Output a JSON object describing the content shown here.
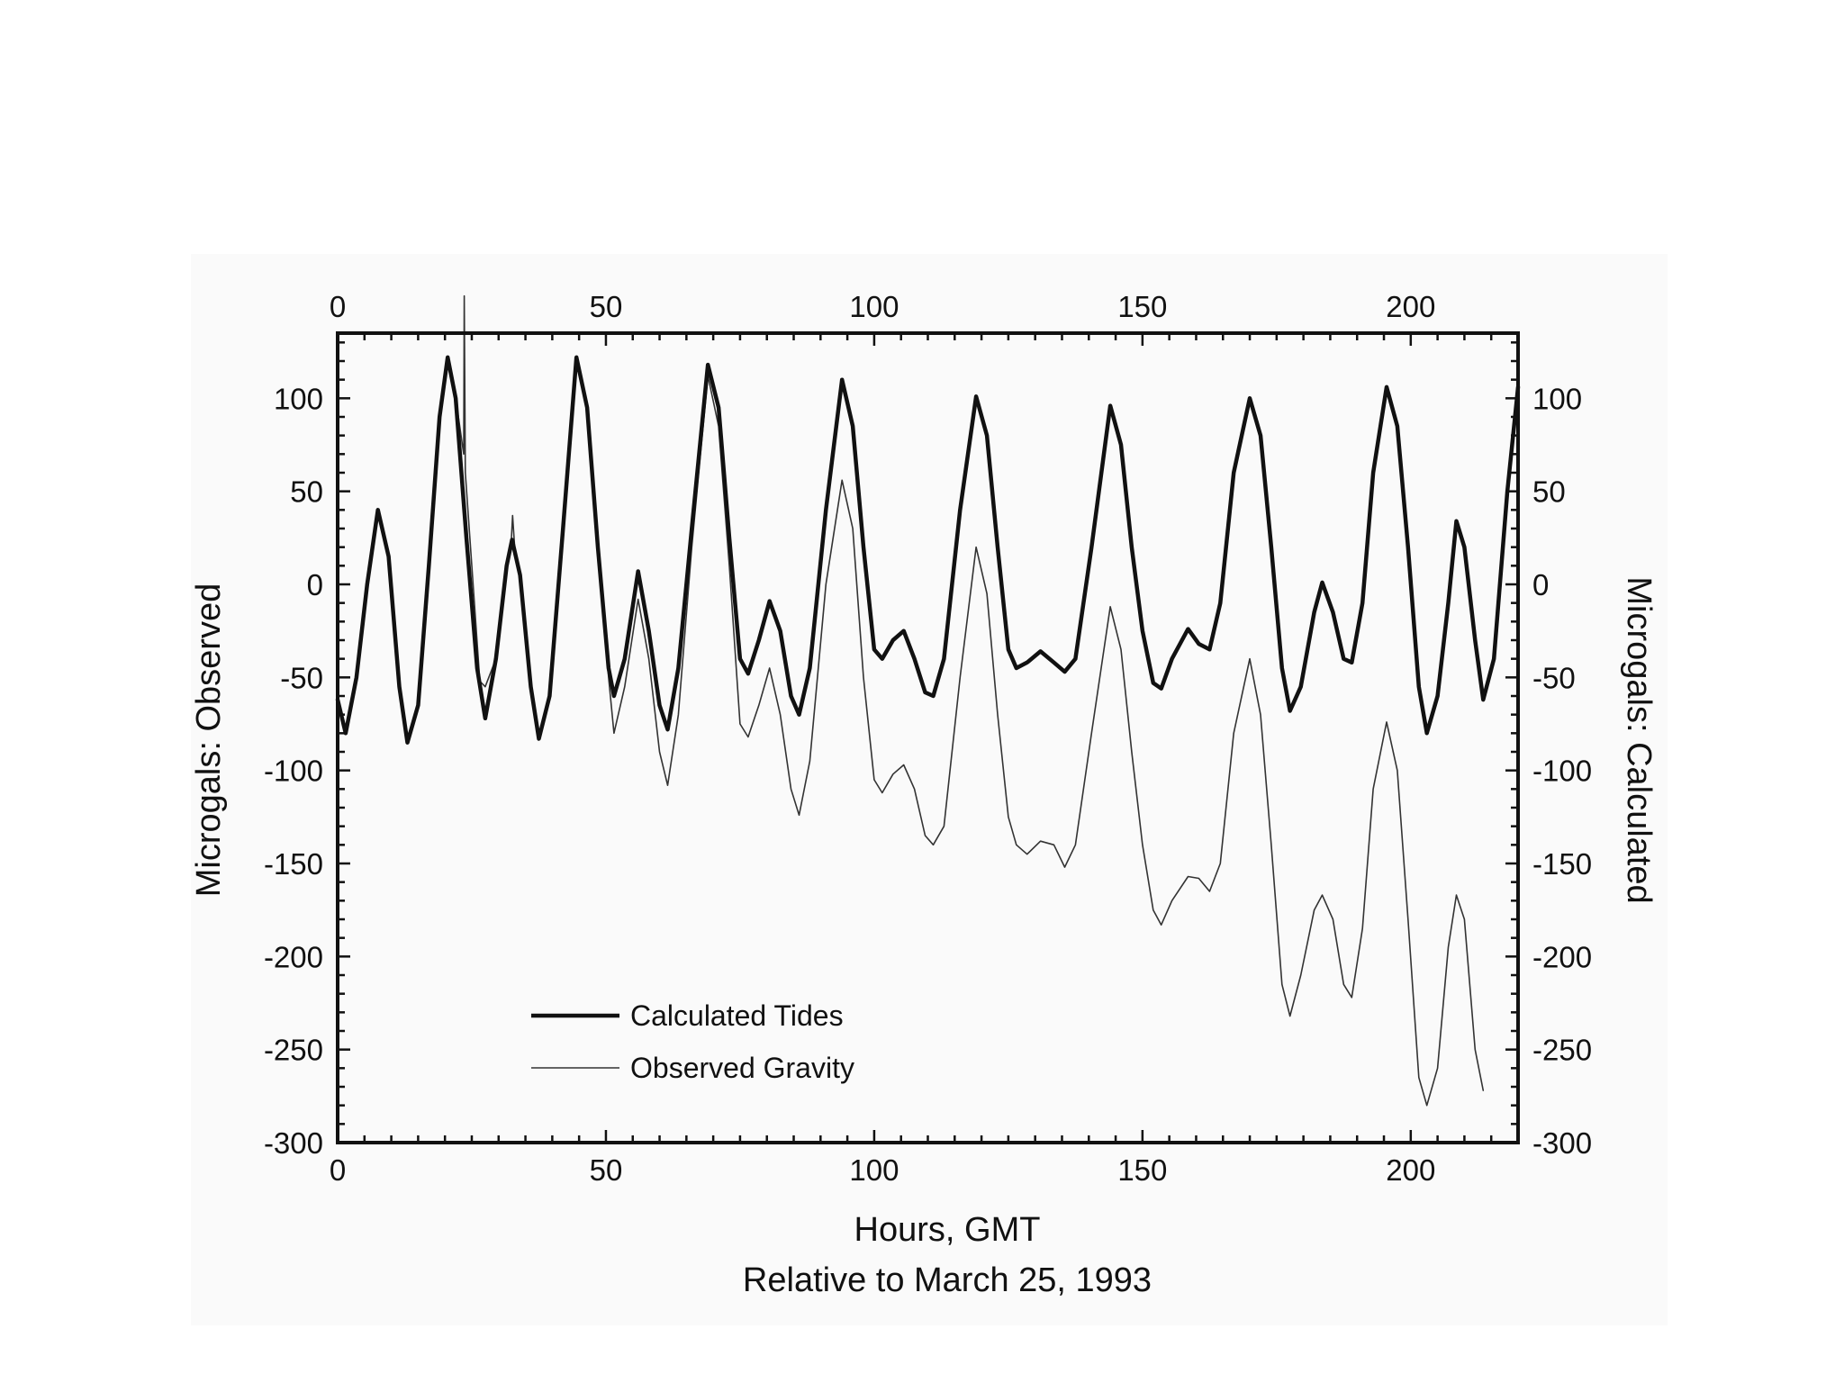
{
  "chart_data": {
    "type": "line",
    "xlabel": "Hours, GMT",
    "xlabel_sub": "Relative to March 25, 1993",
    "ylabel_left": "Microgals: Observed",
    "ylabel_right": "Microgals: Calculated",
    "xlim": [
      0,
      220
    ],
    "ylim": [
      -300,
      135
    ],
    "x_ticks": [
      0,
      50,
      100,
      150,
      200
    ],
    "y_ticks": [
      100,
      50,
      0,
      -50,
      -100,
      -150,
      -200,
      -250,
      -300
    ],
    "grid": false,
    "legend_position": "lower-left",
    "series": [
      {
        "name": "Calculated Tides",
        "style": "thick",
        "color": "#111111",
        "points": [
          [
            0,
            -62
          ],
          [
            1.5,
            -80
          ],
          [
            3.5,
            -50
          ],
          [
            5.5,
            0
          ],
          [
            7.5,
            40
          ],
          [
            9.5,
            15
          ],
          [
            11.5,
            -55
          ],
          [
            13,
            -85
          ],
          [
            15,
            -65
          ],
          [
            17,
            10
          ],
          [
            19,
            90
          ],
          [
            20.5,
            122
          ],
          [
            22,
            100
          ],
          [
            24,
            25
          ],
          [
            26,
            -45
          ],
          [
            27.5,
            -72
          ],
          [
            29.5,
            -40
          ],
          [
            31.5,
            10
          ],
          [
            32.5,
            24
          ],
          [
            34,
            5
          ],
          [
            36,
            -55
          ],
          [
            37.5,
            -83
          ],
          [
            39.5,
            -60
          ],
          [
            42,
            30
          ],
          [
            44.5,
            122
          ],
          [
            46.5,
            95
          ],
          [
            48.5,
            20
          ],
          [
            50.5,
            -45
          ],
          [
            51.5,
            -60
          ],
          [
            53.5,
            -40
          ],
          [
            56,
            7
          ],
          [
            58,
            -25
          ],
          [
            60,
            -65
          ],
          [
            61.5,
            -78
          ],
          [
            63.5,
            -45
          ],
          [
            66,
            30
          ],
          [
            69,
            118
          ],
          [
            71,
            95
          ],
          [
            73,
            25
          ],
          [
            75,
            -40
          ],
          [
            76.5,
            -48
          ],
          [
            78.5,
            -30
          ],
          [
            80.5,
            -9
          ],
          [
            82.5,
            -25
          ],
          [
            84.5,
            -60
          ],
          [
            86,
            -70
          ],
          [
            88,
            -45
          ],
          [
            91,
            40
          ],
          [
            94,
            110
          ],
          [
            96,
            85
          ],
          [
            98,
            20
          ],
          [
            100,
            -35
          ],
          [
            101.5,
            -40
          ],
          [
            103.5,
            -30
          ],
          [
            105.5,
            -25
          ],
          [
            107.5,
            -40
          ],
          [
            109.5,
            -58
          ],
          [
            111,
            -60
          ],
          [
            113,
            -40
          ],
          [
            116,
            40
          ],
          [
            119,
            101
          ],
          [
            121,
            80
          ],
          [
            123,
            20
          ],
          [
            125,
            -35
          ],
          [
            126.5,
            -45
          ],
          [
            128.5,
            -42
          ],
          [
            131,
            -36
          ],
          [
            133.5,
            -42
          ],
          [
            135.5,
            -47
          ],
          [
            137.5,
            -40
          ],
          [
            140.5,
            20
          ],
          [
            144,
            96
          ],
          [
            146,
            75
          ],
          [
            148,
            20
          ],
          [
            150,
            -25
          ],
          [
            152,
            -53
          ],
          [
            153.5,
            -56
          ],
          [
            155.5,
            -40
          ],
          [
            158.5,
            -24
          ],
          [
            160.5,
            -32
          ],
          [
            162.5,
            -35
          ],
          [
            164.5,
            -10
          ],
          [
            167,
            60
          ],
          [
            170,
            100
          ],
          [
            172,
            80
          ],
          [
            174,
            20
          ],
          [
            176,
            -45
          ],
          [
            177.5,
            -68
          ],
          [
            179.5,
            -55
          ],
          [
            182,
            -15
          ],
          [
            183.5,
            1
          ],
          [
            185.5,
            -15
          ],
          [
            187.5,
            -40
          ],
          [
            189,
            -42
          ],
          [
            191,
            -10
          ],
          [
            193,
            60
          ],
          [
            195.5,
            106
          ],
          [
            197.5,
            85
          ],
          [
            199.5,
            20
          ],
          [
            201.5,
            -55
          ],
          [
            203,
            -80
          ],
          [
            205,
            -60
          ],
          [
            207,
            -10
          ],
          [
            208.5,
            34
          ],
          [
            210,
            20
          ],
          [
            212,
            -30
          ],
          [
            213.5,
            -62
          ],
          [
            215.5,
            -40
          ],
          [
            218,
            50
          ],
          [
            220,
            106
          ]
        ]
      },
      {
        "name": "Observed Gravity",
        "style": "thin",
        "color": "#333333",
        "points": [
          [
            0,
            -62
          ],
          [
            1.5,
            -80
          ],
          [
            3.5,
            -50
          ],
          [
            5.5,
            0
          ],
          [
            7.5,
            40
          ],
          [
            9.5,
            15
          ],
          [
            11.5,
            -55
          ],
          [
            13,
            -85
          ],
          [
            15,
            -65
          ],
          [
            17,
            10
          ],
          [
            19,
            90
          ],
          [
            20.5,
            122
          ],
          [
            22,
            100
          ],
          [
            23.5,
            70
          ],
          [
            23.6,
            155
          ],
          [
            23.8,
            60
          ],
          [
            25,
            10
          ],
          [
            26.5,
            -52
          ],
          [
            27.5,
            -55
          ],
          [
            29.5,
            -40
          ],
          [
            31.5,
            10
          ],
          [
            32.3,
            20
          ],
          [
            32.6,
            37
          ],
          [
            33,
            20
          ],
          [
            34,
            5
          ],
          [
            36,
            -55
          ],
          [
            37.5,
            -83
          ],
          [
            39.5,
            -60
          ],
          [
            42,
            30
          ],
          [
            44.5,
            122
          ],
          [
            46.5,
            95
          ],
          [
            48.5,
            20
          ],
          [
            50.5,
            -50
          ],
          [
            51.5,
            -80
          ],
          [
            53.5,
            -55
          ],
          [
            56,
            -8
          ],
          [
            58,
            -40
          ],
          [
            60,
            -90
          ],
          [
            61.5,
            -108
          ],
          [
            63.5,
            -70
          ],
          [
            66,
            20
          ],
          [
            69,
            112
          ],
          [
            71,
            85
          ],
          [
            73,
            10
          ],
          [
            75,
            -75
          ],
          [
            76.5,
            -82
          ],
          [
            78.5,
            -65
          ],
          [
            80.5,
            -45
          ],
          [
            82.5,
            -70
          ],
          [
            84.5,
            -110
          ],
          [
            86,
            -124
          ],
          [
            88,
            -95
          ],
          [
            91,
            0
          ],
          [
            94,
            56
          ],
          [
            96,
            30
          ],
          [
            98,
            -50
          ],
          [
            100,
            -105
          ],
          [
            101.5,
            -112
          ],
          [
            103.5,
            -102
          ],
          [
            105.5,
            -97
          ],
          [
            107.5,
            -110
          ],
          [
            109.5,
            -135
          ],
          [
            111,
            -140
          ],
          [
            113,
            -130
          ],
          [
            116,
            -50
          ],
          [
            119,
            20
          ],
          [
            121,
            -5
          ],
          [
            123,
            -70
          ],
          [
            125,
            -125
          ],
          [
            126.5,
            -140
          ],
          [
            128.5,
            -145
          ],
          [
            131,
            -138
          ],
          [
            133.5,
            -140
          ],
          [
            135.5,
            -152
          ],
          [
            137.5,
            -140
          ],
          [
            140.5,
            -80
          ],
          [
            144,
            -12
          ],
          [
            146,
            -35
          ],
          [
            148,
            -90
          ],
          [
            150,
            -140
          ],
          [
            152,
            -175
          ],
          [
            153.5,
            -183
          ],
          [
            155.5,
            -170
          ],
          [
            158.5,
            -157
          ],
          [
            160.5,
            -158
          ],
          [
            162.5,
            -165
          ],
          [
            164.5,
            -150
          ],
          [
            167,
            -80
          ],
          [
            170,
            -40
          ],
          [
            172,
            -70
          ],
          [
            174,
            -140
          ],
          [
            176,
            -215
          ],
          [
            177.5,
            -232
          ],
          [
            179.5,
            -210
          ],
          [
            182,
            -175
          ],
          [
            183.5,
            -167
          ],
          [
            185.5,
            -180
          ],
          [
            187.5,
            -215
          ],
          [
            189,
            -222
          ],
          [
            191,
            -185
          ],
          [
            193,
            -110
          ],
          [
            195.5,
            -74
          ],
          [
            197.5,
            -100
          ],
          [
            199.5,
            -180
          ],
          [
            201.5,
            -265
          ],
          [
            203,
            -280
          ],
          [
            205,
            -260
          ],
          [
            207,
            -195
          ],
          [
            208.5,
            -167
          ],
          [
            210,
            -180
          ],
          [
            212,
            -250
          ],
          [
            213.5,
            -272
          ]
        ]
      }
    ]
  }
}
